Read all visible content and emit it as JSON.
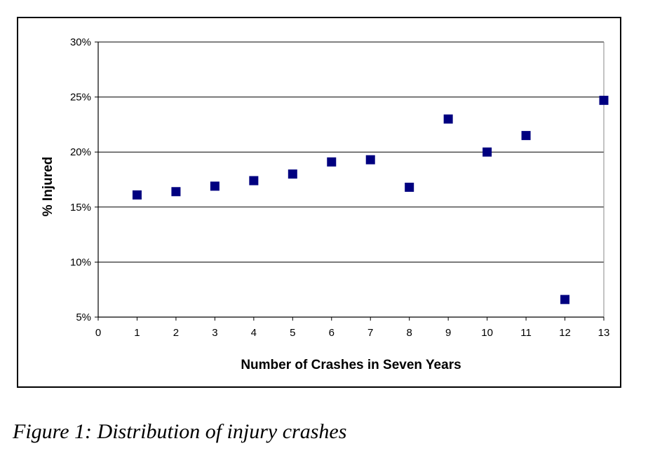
{
  "caption": "Figure 1: Distribution of injury crashes",
  "chart_data": {
    "type": "scatter",
    "title": "",
    "xlabel": "Number of Crashes in Seven Years",
    "ylabel": "% Injured",
    "xlim": [
      0,
      13
    ],
    "ylim": [
      5,
      30
    ],
    "x_ticks": [
      "0",
      "1",
      "2",
      "3",
      "4",
      "5",
      "6",
      "7",
      "8",
      "9",
      "10",
      "11",
      "12",
      "13"
    ],
    "y_ticks": [
      {
        "value": 5,
        "label": "5%"
      },
      {
        "value": 10,
        "label": "10%"
      },
      {
        "value": 15,
        "label": "15%"
      },
      {
        "value": 20,
        "label": "20%"
      },
      {
        "value": 25,
        "label": "25%"
      },
      {
        "value": 30,
        "label": "30%"
      }
    ],
    "grid": "horizontal",
    "legend": "none",
    "marker": "square",
    "marker_color": "#000080",
    "series": [
      {
        "x": [
          1,
          2,
          3,
          4,
          5,
          6,
          7,
          8,
          9,
          10,
          11,
          12,
          13
        ],
        "y": [
          16.1,
          16.4,
          16.9,
          17.4,
          18.0,
          19.1,
          19.3,
          16.8,
          23.0,
          20.0,
          21.5,
          6.6,
          24.7
        ]
      }
    ]
  }
}
